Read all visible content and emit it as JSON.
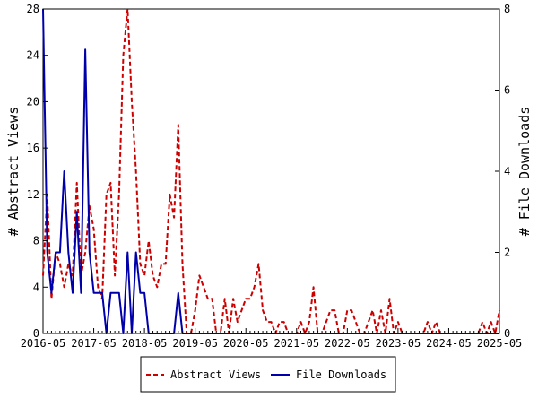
{
  "chart_data": {
    "type": "line",
    "ylabel_left": "# Abstract Views",
    "ylabel_right": "# File Downloads",
    "x_ticks": [
      "2016-05",
      "2017-05",
      "2018-05",
      "2019-05",
      "2020-05",
      "2021-05",
      "2022-05",
      "2023-05",
      "2024-05",
      "2025-05"
    ],
    "y_left_ticks": [
      "0",
      "4",
      "8",
      "12",
      "16",
      "20",
      "24",
      "28"
    ],
    "y_right_ticks": [
      "0",
      "2",
      "4",
      "6",
      "8"
    ],
    "ylim_left": [
      0,
      28
    ],
    "ylim_right": [
      0,
      8
    ],
    "x_range_months": [
      "2016-05",
      "2025-05"
    ],
    "grid": false,
    "legend_position": "bottom-center",
    "series": [
      {
        "name": "Abstract Views",
        "axis": "left",
        "color": "#cc0000",
        "style": "dashed",
        "points": [
          [
            "2016-05",
            5
          ],
          [
            "2016-06",
            12
          ],
          [
            "2016-07",
            3
          ],
          [
            "2016-08",
            7
          ],
          [
            "2016-09",
            6
          ],
          [
            "2016-10",
            4
          ],
          [
            "2016-11",
            6
          ],
          [
            "2016-12",
            5
          ],
          [
            "2017-01",
            13
          ],
          [
            "2017-02",
            5
          ],
          [
            "2017-03",
            7
          ],
          [
            "2017-04",
            11
          ],
          [
            "2017-05",
            9
          ],
          [
            "2017-06",
            4
          ],
          [
            "2017-07",
            3
          ],
          [
            "2017-08",
            12
          ],
          [
            "2017-09",
            13
          ],
          [
            "2017-10",
            5
          ],
          [
            "2017-11",
            12
          ],
          [
            "2017-12",
            24
          ],
          [
            "2018-01",
            28
          ],
          [
            "2018-02",
            20
          ],
          [
            "2018-03",
            14
          ],
          [
            "2018-04",
            6
          ],
          [
            "2018-05",
            5
          ],
          [
            "2018-06",
            8
          ],
          [
            "2018-07",
            5
          ],
          [
            "2018-08",
            4
          ],
          [
            "2018-09",
            6
          ],
          [
            "2018-10",
            6
          ],
          [
            "2018-11",
            12
          ],
          [
            "2018-12",
            10
          ],
          [
            "2019-01",
            18
          ],
          [
            "2019-02",
            6
          ],
          [
            "2019-03",
            0
          ],
          [
            "2019-04",
            0
          ],
          [
            "2019-05",
            2
          ],
          [
            "2019-06",
            5
          ],
          [
            "2019-07",
            4
          ],
          [
            "2019-08",
            3
          ],
          [
            "2019-09",
            3
          ],
          [
            "2019-10",
            0
          ],
          [
            "2019-11",
            0
          ],
          [
            "2019-12",
            3
          ],
          [
            "2020-01",
            0
          ],
          [
            "2020-02",
            3
          ],
          [
            "2020-03",
            1
          ],
          [
            "2020-04",
            2
          ],
          [
            "2020-05",
            3
          ],
          [
            "2020-06",
            3
          ],
          [
            "2020-07",
            4
          ],
          [
            "2020-08",
            6
          ],
          [
            "2020-09",
            2
          ],
          [
            "2020-10",
            1
          ],
          [
            "2020-11",
            1
          ],
          [
            "2020-12",
            0
          ],
          [
            "2021-01",
            1
          ],
          [
            "2021-02",
            1
          ],
          [
            "2021-03",
            0
          ],
          [
            "2021-04",
            0
          ],
          [
            "2021-05",
            0
          ],
          [
            "2021-06",
            1
          ],
          [
            "2021-07",
            0
          ],
          [
            "2021-08",
            1
          ],
          [
            "2021-09",
            4
          ],
          [
            "2021-10",
            0
          ],
          [
            "2021-11",
            0
          ],
          [
            "2021-12",
            1
          ],
          [
            "2022-01",
            2
          ],
          [
            "2022-02",
            2
          ],
          [
            "2022-03",
            0
          ],
          [
            "2022-04",
            0
          ],
          [
            "2022-05",
            2
          ],
          [
            "2022-06",
            2
          ],
          [
            "2022-07",
            1
          ],
          [
            "2022-08",
            0
          ],
          [
            "2022-09",
            0
          ],
          [
            "2022-10",
            1
          ],
          [
            "2022-11",
            2
          ],
          [
            "2022-12",
            0
          ],
          [
            "2023-01",
            2
          ],
          [
            "2023-02",
            0
          ],
          [
            "2023-03",
            3
          ],
          [
            "2023-04",
            0
          ],
          [
            "2023-05",
            1
          ],
          [
            "2023-06",
            0
          ],
          [
            "2023-07",
            0
          ],
          [
            "2023-08",
            0
          ],
          [
            "2023-09",
            0
          ],
          [
            "2023-10",
            0
          ],
          [
            "2023-11",
            0
          ],
          [
            "2023-12",
            1
          ],
          [
            "2024-01",
            0
          ],
          [
            "2024-02",
            1
          ],
          [
            "2024-03",
            0
          ],
          [
            "2024-04",
            0
          ],
          [
            "2024-05",
            0
          ],
          [
            "2024-06",
            0
          ],
          [
            "2024-07",
            0
          ],
          [
            "2024-08",
            0
          ],
          [
            "2024-09",
            0
          ],
          [
            "2024-10",
            0
          ],
          [
            "2024-11",
            0
          ],
          [
            "2024-12",
            0
          ],
          [
            "2025-01",
            1
          ],
          [
            "2025-02",
            0
          ],
          [
            "2025-03",
            1
          ],
          [
            "2025-04",
            0
          ],
          [
            "2025-05",
            2
          ]
        ]
      },
      {
        "name": "File Downloads",
        "axis": "right",
        "color": "#0000aa",
        "style": "solid",
        "points": [
          [
            "2016-05",
            8
          ],
          [
            "2016-06",
            2
          ],
          [
            "2016-07",
            1
          ],
          [
            "2016-08",
            2
          ],
          [
            "2016-09",
            2
          ],
          [
            "2016-10",
            4
          ],
          [
            "2016-11",
            2
          ],
          [
            "2016-12",
            1
          ],
          [
            "2017-01",
            3
          ],
          [
            "2017-02",
            1
          ],
          [
            "2017-03",
            7
          ],
          [
            "2017-04",
            2
          ],
          [
            "2017-05",
            1
          ],
          [
            "2017-06",
            1
          ],
          [
            "2017-07",
            1
          ],
          [
            "2017-08",
            0
          ],
          [
            "2017-09",
            1
          ],
          [
            "2017-10",
            1
          ],
          [
            "2017-11",
            1
          ],
          [
            "2017-12",
            0
          ],
          [
            "2018-01",
            2
          ],
          [
            "2018-02",
            0
          ],
          [
            "2018-03",
            2
          ],
          [
            "2018-04",
            1
          ],
          [
            "2018-05",
            1
          ],
          [
            "2018-06",
            0
          ],
          [
            "2018-07",
            0
          ],
          [
            "2018-08",
            0
          ],
          [
            "2018-09",
            0
          ],
          [
            "2018-10",
            0
          ],
          [
            "2018-11",
            0
          ],
          [
            "2018-12",
            0
          ],
          [
            "2019-01",
            1
          ],
          [
            "2019-02",
            0
          ],
          [
            "2025-05",
            0
          ]
        ]
      }
    ]
  }
}
